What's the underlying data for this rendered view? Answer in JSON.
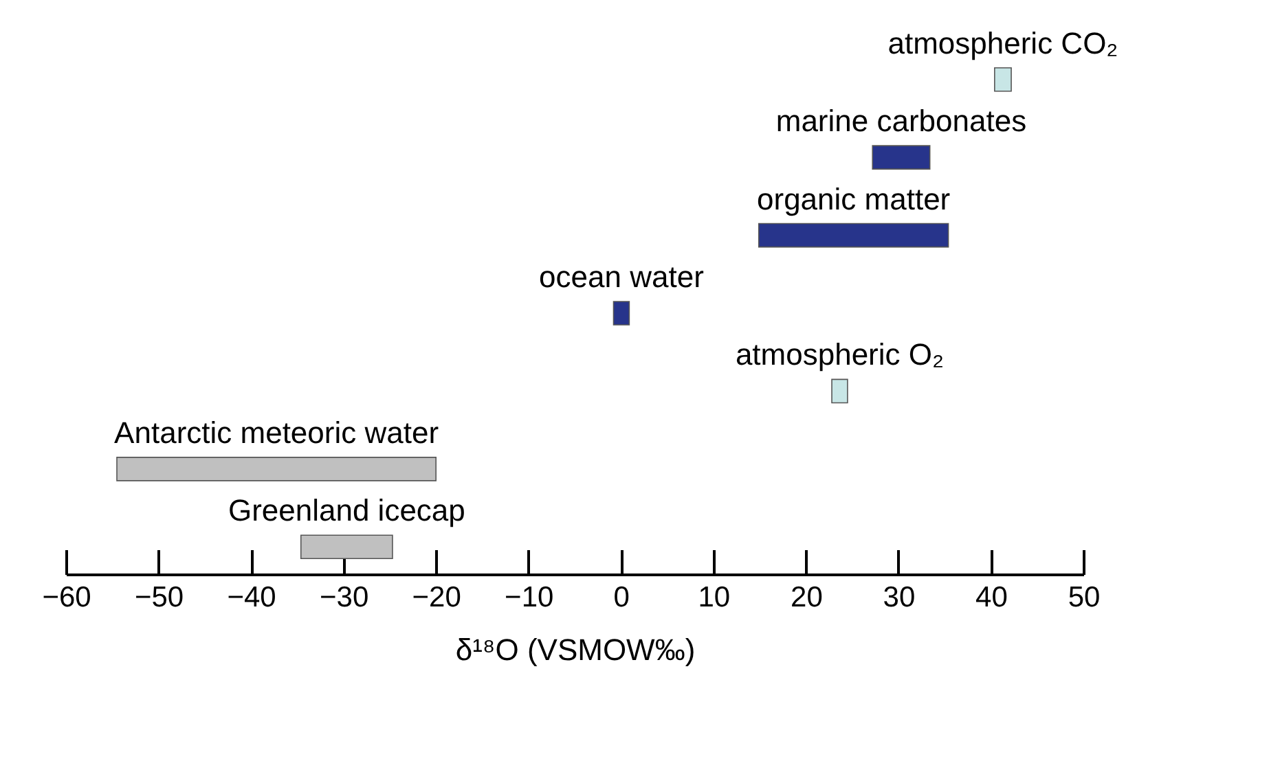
{
  "chart_data": {
    "type": "bar",
    "orientation": "horizontal",
    "categories": [
      "atmospheric CO₂",
      "marine carbonates",
      "organic matter",
      "ocean water",
      "atmospheric O₂",
      "Antarctic meteoric water",
      "Greenland icecap"
    ],
    "base": [
      40.4,
      27.2,
      14.9,
      -0.8,
      22.8,
      -54.5,
      -34.6
    ],
    "values": [
      1.8,
      6.2,
      20.5,
      1.7,
      1.7,
      34.5,
      9.9
    ],
    "colors": [
      "#c8e6e6",
      "#27348b",
      "#27348b",
      "#27348b",
      "#c8e6e6",
      "#c0c0c0",
      "#c0c0c0"
    ],
    "xlim": [
      -60,
      50
    ],
    "xticks": [
      -60,
      -50,
      -40,
      -30,
      -20,
      -10,
      0,
      10,
      20,
      30,
      40,
      50
    ],
    "xlabel": "δ¹⁸O (VSMOW‰)"
  }
}
